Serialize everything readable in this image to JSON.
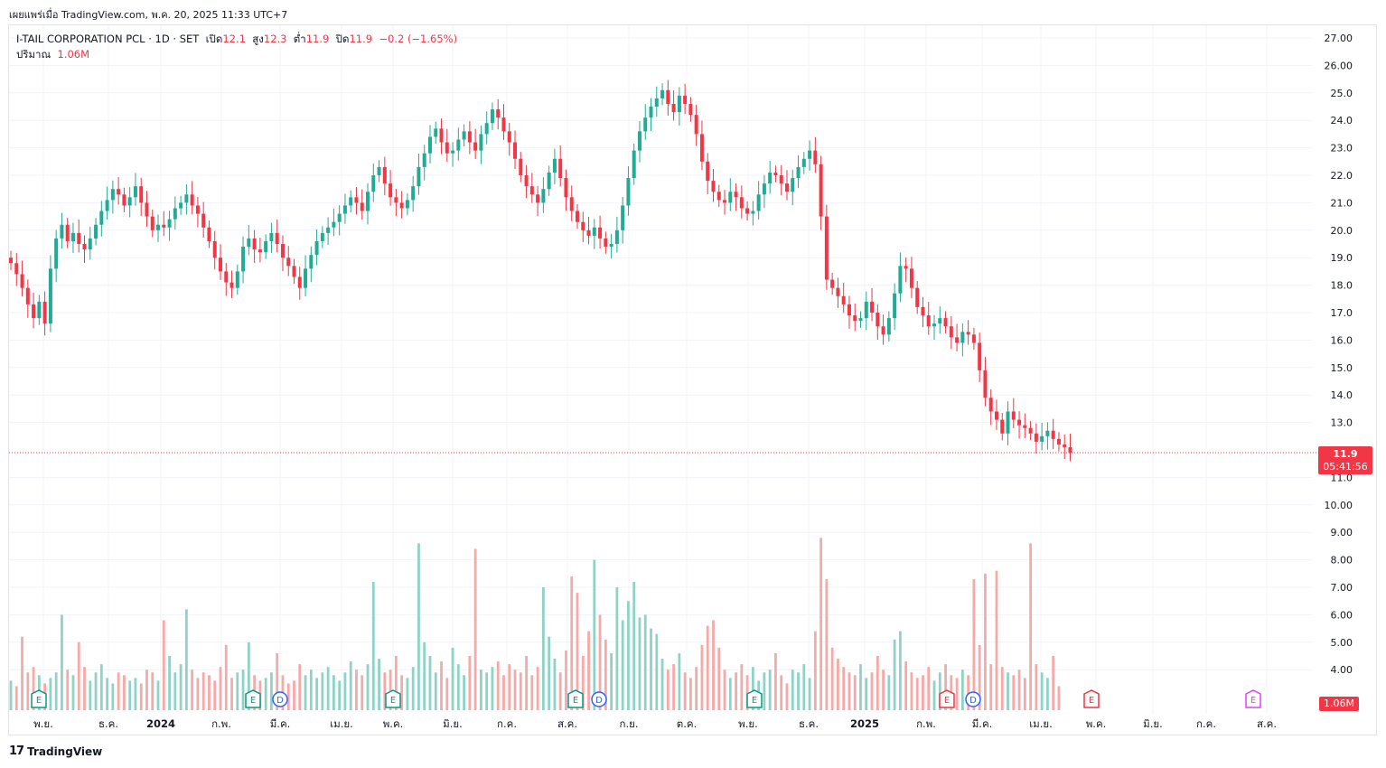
{
  "header": {
    "published_line": "เผยแพร่เมื่อ TradingView.com, พ.ค. 20, 2025 11:33 UTC+7"
  },
  "legend": {
    "symbol": "I-TAIL CORPORATION PCL · 1D · SET",
    "open_label": "เปิด",
    "open": "12.1",
    "high_label": "สูง",
    "high": "12.3",
    "low_label": "ต่ำ",
    "low": "11.9",
    "close_label": "ปิด",
    "close": "11.9",
    "change": "−0.2 (−1.65%)",
    "volume_label": "ปริมาณ",
    "volume": "1.06M"
  },
  "price_tag": {
    "price": "11.9",
    "countdown": "05:41:56"
  },
  "volume_tag": "1.06M",
  "brand": {
    "logo": "17",
    "name": "TradingView"
  },
  "colors": {
    "up": "#22ab94",
    "down": "#f23645",
    "up_vol": "#8fd3c7",
    "down_vol": "#f7a9a7",
    "grid": "#f0f3fa"
  },
  "chart_data": {
    "type": "candlestick",
    "y_axis": {
      "ticks": [
        "27.00",
        "26.00",
        "25.0",
        "24.0",
        "23.0",
        "22.0",
        "21.0",
        "20.0",
        "19.0",
        "18.0",
        "17.0",
        "16.0",
        "15.0",
        "14.0",
        "13.0",
        "11.0",
        "10.00",
        "9.00",
        "8.00",
        "7.00",
        "6.00",
        "5.00",
        "4.00"
      ],
      "range": [
        2.4,
        27.95
      ]
    },
    "x_axis": {
      "ticks": [
        {
          "label": "พ.ย.",
          "bold": false
        },
        {
          "label": "ธ.ค.",
          "bold": false
        },
        {
          "label": "2024",
          "bold": true
        },
        {
          "label": "ก.พ.",
          "bold": false
        },
        {
          "label": "มี.ค.",
          "bold": false
        },
        {
          "label": "เม.ย.",
          "bold": false
        },
        {
          "label": "พ.ค.",
          "bold": false
        },
        {
          "label": "มิ.ย.",
          "bold": false
        },
        {
          "label": "ก.ค.",
          "bold": false
        },
        {
          "label": "ส.ค.",
          "bold": false
        },
        {
          "label": "ก.ย.",
          "bold": false
        },
        {
          "label": "ต.ค.",
          "bold": false
        },
        {
          "label": "พ.ย.",
          "bold": false
        },
        {
          "label": "ธ.ค.",
          "bold": false
        },
        {
          "label": "2025",
          "bold": true
        },
        {
          "label": "ก.พ.",
          "bold": false
        },
        {
          "label": "มี.ค.",
          "bold": false
        },
        {
          "label": "เม.ย.",
          "bold": false
        },
        {
          "label": "พ.ค.",
          "bold": false
        },
        {
          "label": "มิ.ย.",
          "bold": false
        },
        {
          "label": "ก.ค.",
          "bold": false
        },
        {
          "label": "ส.ค.",
          "bold": false
        }
      ]
    },
    "close_series": [
      18.8,
      18.4,
      17.9,
      17.3,
      16.8,
      17.4,
      16.6,
      18.6,
      19.7,
      20.2,
      19.6,
      19.9,
      19.5,
      19.3,
      19.7,
      20.2,
      20.7,
      21.1,
      21.5,
      21.3,
      20.9,
      21.2,
      21.6,
      21.0,
      20.5,
      20.0,
      20.2,
      20.1,
      20.4,
      20.8,
      21.0,
      21.3,
      20.9,
      20.6,
      20.1,
      19.6,
      19.0,
      18.5,
      18.1,
      17.9,
      18.5,
      19.4,
      19.7,
      19.3,
      19.2,
      19.6,
      19.9,
      19.5,
      19.0,
      18.7,
      18.3,
      17.9,
      18.6,
      19.1,
      19.6,
      19.9,
      20.1,
      20.3,
      20.6,
      20.9,
      21.2,
      21.0,
      20.7,
      21.4,
      22.0,
      22.3,
      21.7,
      21.2,
      21.0,
      20.8,
      21.1,
      21.6,
      22.3,
      22.8,
      23.4,
      23.7,
      23.2,
      22.8,
      22.9,
      23.3,
      23.6,
      23.2,
      22.9,
      23.5,
      23.9,
      24.4,
      24.1,
      23.6,
      23.2,
      22.6,
      22.0,
      21.6,
      21.3,
      21.0,
      21.5,
      22.1,
      22.6,
      21.9,
      21.2,
      20.7,
      20.3,
      20.0,
      19.8,
      20.1,
      19.7,
      19.4,
      19.5,
      20.0,
      20.9,
      21.9,
      22.9,
      23.6,
      24.1,
      24.5,
      24.8,
      25.1,
      24.6,
      24.3,
      24.9,
      24.6,
      24.2,
      23.5,
      22.5,
      21.8,
      21.4,
      21.1,
      21.0,
      21.4,
      21.2,
      20.8,
      20.6,
      20.7,
      21.3,
      21.7,
      22.1,
      22.0,
      21.7,
      21.4,
      21.9,
      22.3,
      22.6,
      22.9,
      22.4,
      20.5,
      18.2,
      17.9,
      17.6,
      17.3,
      16.9,
      16.7,
      16.8,
      17.4,
      17.0,
      16.5,
      16.2,
      16.8,
      17.7,
      18.7,
      18.6,
      17.9,
      17.2,
      16.9,
      16.5,
      16.6,
      16.8,
      16.5,
      16.1,
      15.9,
      16.3,
      16.2,
      15.9,
      14.9,
      13.9,
      13.4,
      13.1,
      12.6,
      13.4,
      13.1,
      12.9,
      12.8,
      12.6,
      12.3,
      12.5,
      12.7,
      12.4,
      12.2,
      12.1,
      11.9
    ],
    "volume_series": [
      3.6,
      3.4,
      5.2,
      3.9,
      4.1,
      3.8,
      3.5,
      3.7,
      3.9,
      6.0,
      4.0,
      3.8,
      5.0,
      4.1,
      3.6,
      3.9,
      4.2,
      3.7,
      3.5,
      3.9,
      3.8,
      3.6,
      3.7,
      3.5,
      4.0,
      3.9,
      3.6,
      5.8,
      4.5,
      3.9,
      4.2,
      6.2,
      4.0,
      3.7,
      3.9,
      3.8,
      3.6,
      4.1,
      4.9,
      3.7,
      3.9,
      4.0,
      5.0,
      3.8,
      3.6,
      3.7,
      3.9,
      4.6,
      3.8,
      3.5,
      3.6,
      4.2,
      3.8,
      4.0,
      3.7,
      3.9,
      4.1,
      3.8,
      3.6,
      3.9,
      4.3,
      4.0,
      3.8,
      4.2,
      7.2,
      4.4,
      3.9,
      4.0,
      4.5,
      3.8,
      3.7,
      4.1,
      8.6,
      5.0,
      4.5,
      3.9,
      4.3,
      3.7,
      4.8,
      4.2,
      3.8,
      4.5,
      8.4,
      4.0,
      3.9,
      4.1,
      4.3,
      3.8,
      4.2,
      4.0,
      3.9,
      4.5,
      3.8,
      4.1,
      7.0,
      5.2,
      4.4,
      3.9,
      4.7,
      7.4,
      6.8,
      4.5,
      5.4,
      8.0,
      6.0,
      5.1,
      4.6,
      7.0,
      5.8,
      6.5,
      7.2,
      5.9,
      6.0,
      5.5,
      5.3,
      4.4,
      4.0,
      4.2,
      4.6,
      3.9,
      3.7,
      4.1,
      4.9,
      5.6,
      5.8,
      4.8,
      4.0,
      3.7,
      3.9,
      4.2,
      3.8,
      4.1,
      3.6,
      3.9,
      4.0,
      4.6,
      3.8,
      3.5,
      4.0,
      3.9,
      4.2,
      3.7,
      5.4,
      8.8,
      7.3,
      4.8,
      4.4,
      4.1,
      3.9,
      3.8,
      4.2,
      3.7,
      3.9,
      4.5,
      4.0,
      3.8,
      5.1,
      5.4,
      4.3,
      3.9,
      3.7,
      3.8,
      4.1,
      3.6,
      3.9,
      4.2,
      3.8,
      3.7,
      4.0,
      3.8,
      7.3,
      4.9,
      7.5,
      4.2,
      7.6,
      4.1,
      3.9,
      3.8,
      4.0,
      3.7,
      8.6,
      4.2,
      3.9,
      3.7,
      4.5,
      3.4
    ],
    "events": [
      {
        "label": "E",
        "type": "earnings-past"
      },
      {
        "label": "E",
        "type": "earnings-past"
      },
      {
        "label": "D",
        "type": "dividend"
      },
      {
        "label": "E",
        "type": "earnings-past"
      },
      {
        "label": "E",
        "type": "earnings-past"
      },
      {
        "label": "D",
        "type": "dividend"
      },
      {
        "label": "E",
        "type": "earnings-past"
      },
      {
        "label": "E",
        "type": "earnings-miss"
      },
      {
        "label": "D",
        "type": "dividend"
      },
      {
        "label": "E",
        "type": "earnings-miss"
      },
      {
        "label": "E",
        "type": "earnings-future"
      }
    ]
  }
}
